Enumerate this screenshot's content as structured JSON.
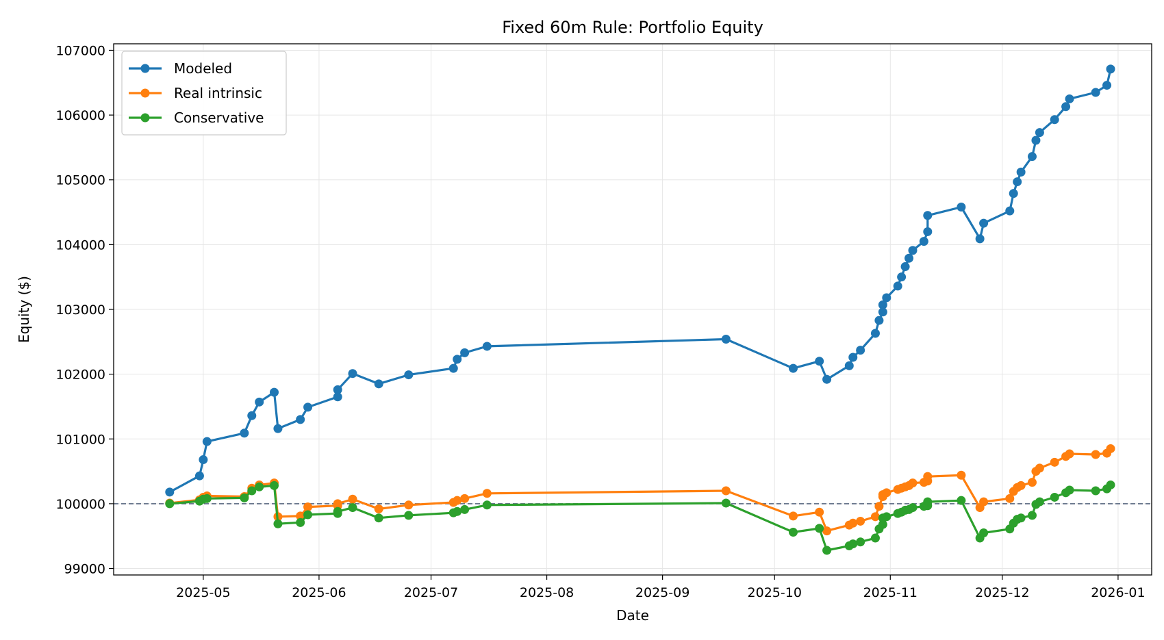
{
  "chart_data": {
    "type": "line",
    "title": "Fixed 60m Rule: Portfolio Equity",
    "xlabel": "Date",
    "ylabel": "Equity ($)",
    "xlim": [
      "2025-04-07",
      "2026-01-10"
    ],
    "ylim": [
      98900,
      107100
    ],
    "x_ticks": [
      "2025-05",
      "2025-06",
      "2025-07",
      "2025-08",
      "2025-09",
      "2025-10",
      "2025-11",
      "2025-12",
      "2026-01"
    ],
    "y_ticks": [
      99000,
      100000,
      101000,
      102000,
      103000,
      104000,
      105000,
      106000,
      107000
    ],
    "grid": true,
    "legend_position": "top-left",
    "reference_line": {
      "y": 100000,
      "style": "dashed",
      "color": "#56657e"
    },
    "series": [
      {
        "name": "Modeled",
        "color": "#1f77b4",
        "points": [
          [
            "2025-04-22",
            100180
          ],
          [
            "2025-04-30",
            100430
          ],
          [
            "2025-05-01",
            100680
          ],
          [
            "2025-05-02",
            100960
          ],
          [
            "2025-05-12",
            101090
          ],
          [
            "2025-05-14",
            101360
          ],
          [
            "2025-05-16",
            101570
          ],
          [
            "2025-05-20",
            101720
          ],
          [
            "2025-05-21",
            101160
          ],
          [
            "2025-05-27",
            101300
          ],
          [
            "2025-05-29",
            101490
          ],
          [
            "2025-06-06",
            101650
          ],
          [
            "2025-06-06",
            101760
          ],
          [
            "2025-06-10",
            102010
          ],
          [
            "2025-06-17",
            101850
          ],
          [
            "2025-06-25",
            101990
          ],
          [
            "2025-07-07",
            102090
          ],
          [
            "2025-07-08",
            102230
          ],
          [
            "2025-07-10",
            102330
          ],
          [
            "2025-07-16",
            102430
          ],
          [
            "2025-09-18",
            102540
          ],
          [
            "2025-10-06",
            102090
          ],
          [
            "2025-10-13",
            102200
          ],
          [
            "2025-10-15",
            101920
          ],
          [
            "2025-10-21",
            102130
          ],
          [
            "2025-10-22",
            102260
          ],
          [
            "2025-10-24",
            102370
          ],
          [
            "2025-10-28",
            102630
          ],
          [
            "2025-10-29",
            102830
          ],
          [
            "2025-10-30",
            102960
          ],
          [
            "2025-10-30",
            103070
          ],
          [
            "2025-10-31",
            103180
          ],
          [
            "2025-11-03",
            103360
          ],
          [
            "2025-11-04",
            103500
          ],
          [
            "2025-11-05",
            103660
          ],
          [
            "2025-11-06",
            103790
          ],
          [
            "2025-11-07",
            103910
          ],
          [
            "2025-11-10",
            104050
          ],
          [
            "2025-11-11",
            104200
          ],
          [
            "2025-11-11",
            104450
          ],
          [
            "2025-11-20",
            104580
          ],
          [
            "2025-11-25",
            104090
          ],
          [
            "2025-11-26",
            104330
          ],
          [
            "2025-12-03",
            104520
          ],
          [
            "2025-12-04",
            104790
          ],
          [
            "2025-12-05",
            104970
          ],
          [
            "2025-12-06",
            105120
          ],
          [
            "2025-12-09",
            105360
          ],
          [
            "2025-12-10",
            105610
          ],
          [
            "2025-12-11",
            105730
          ],
          [
            "2025-12-15",
            105930
          ],
          [
            "2025-12-18",
            106130
          ],
          [
            "2025-12-19",
            106250
          ],
          [
            "2025-12-26",
            106350
          ],
          [
            "2025-12-29",
            106460
          ],
          [
            "2025-12-30",
            106710
          ]
        ]
      },
      {
        "name": "Real intrinsic",
        "color": "#ff7f0e",
        "points": [
          [
            "2025-04-22",
            100010
          ],
          [
            "2025-04-30",
            100060
          ],
          [
            "2025-05-01",
            100100
          ],
          [
            "2025-05-02",
            100120
          ],
          [
            "2025-05-12",
            100110
          ],
          [
            "2025-05-14",
            100240
          ],
          [
            "2025-05-16",
            100290
          ],
          [
            "2025-05-20",
            100320
          ],
          [
            "2025-05-21",
            99800
          ],
          [
            "2025-05-27",
            99810
          ],
          [
            "2025-05-29",
            99950
          ],
          [
            "2025-06-06",
            99970
          ],
          [
            "2025-06-06",
            100000
          ],
          [
            "2025-06-10",
            100070
          ],
          [
            "2025-06-17",
            99920
          ],
          [
            "2025-06-25",
            99980
          ],
          [
            "2025-07-07",
            100020
          ],
          [
            "2025-07-08",
            100050
          ],
          [
            "2025-07-10",
            100080
          ],
          [
            "2025-07-16",
            100160
          ],
          [
            "2025-09-18",
            100200
          ],
          [
            "2025-10-06",
            99810
          ],
          [
            "2025-10-13",
            99870
          ],
          [
            "2025-10-15",
            99580
          ],
          [
            "2025-10-21",
            99670
          ],
          [
            "2025-10-22",
            99700
          ],
          [
            "2025-10-24",
            99730
          ],
          [
            "2025-10-28",
            99800
          ],
          [
            "2025-10-29",
            99960
          ],
          [
            "2025-10-30",
            100110
          ],
          [
            "2025-10-30",
            100140
          ],
          [
            "2025-10-31",
            100170
          ],
          [
            "2025-11-03",
            100220
          ],
          [
            "2025-11-04",
            100240
          ],
          [
            "2025-11-05",
            100260
          ],
          [
            "2025-11-06",
            100280
          ],
          [
            "2025-11-07",
            100320
          ],
          [
            "2025-11-10",
            100330
          ],
          [
            "2025-11-11",
            100350
          ],
          [
            "2025-11-11",
            100420
          ],
          [
            "2025-11-20",
            100440
          ],
          [
            "2025-11-25",
            99940
          ],
          [
            "2025-11-26",
            100030
          ],
          [
            "2025-12-03",
            100080
          ],
          [
            "2025-12-04",
            100190
          ],
          [
            "2025-12-05",
            100250
          ],
          [
            "2025-12-06",
            100280
          ],
          [
            "2025-12-09",
            100330
          ],
          [
            "2025-12-10",
            100500
          ],
          [
            "2025-12-11",
            100550
          ],
          [
            "2025-12-15",
            100640
          ],
          [
            "2025-12-18",
            100730
          ],
          [
            "2025-12-19",
            100770
          ],
          [
            "2025-12-26",
            100760
          ],
          [
            "2025-12-29",
            100780
          ],
          [
            "2025-12-30",
            100850
          ]
        ]
      },
      {
        "name": "Conservative",
        "color": "#2ca02c",
        "points": [
          [
            "2025-04-22",
            100000
          ],
          [
            "2025-04-30",
            100040
          ],
          [
            "2025-05-01",
            100070
          ],
          [
            "2025-05-02",
            100080
          ],
          [
            "2025-05-12",
            100090
          ],
          [
            "2025-05-14",
            100200
          ],
          [
            "2025-05-16",
            100260
          ],
          [
            "2025-05-20",
            100280
          ],
          [
            "2025-05-21",
            99690
          ],
          [
            "2025-05-27",
            99710
          ],
          [
            "2025-05-29",
            99830
          ],
          [
            "2025-06-06",
            99850
          ],
          [
            "2025-06-06",
            99880
          ],
          [
            "2025-06-10",
            99940
          ],
          [
            "2025-06-17",
            99780
          ],
          [
            "2025-06-25",
            99820
          ],
          [
            "2025-07-07",
            99860
          ],
          [
            "2025-07-08",
            99880
          ],
          [
            "2025-07-10",
            99910
          ],
          [
            "2025-07-16",
            99980
          ],
          [
            "2025-09-18",
            100010
          ],
          [
            "2025-10-06",
            99560
          ],
          [
            "2025-10-13",
            99620
          ],
          [
            "2025-10-15",
            99280
          ],
          [
            "2025-10-21",
            99350
          ],
          [
            "2025-10-22",
            99380
          ],
          [
            "2025-10-24",
            99410
          ],
          [
            "2025-10-28",
            99470
          ],
          [
            "2025-10-29",
            99610
          ],
          [
            "2025-10-30",
            99680
          ],
          [
            "2025-10-30",
            99780
          ],
          [
            "2025-10-31",
            99800
          ],
          [
            "2025-11-03",
            99850
          ],
          [
            "2025-11-04",
            99870
          ],
          [
            "2025-11-05",
            99900
          ],
          [
            "2025-11-06",
            99910
          ],
          [
            "2025-11-07",
            99940
          ],
          [
            "2025-11-10",
            99960
          ],
          [
            "2025-11-11",
            99970
          ],
          [
            "2025-11-11",
            100030
          ],
          [
            "2025-11-20",
            100050
          ],
          [
            "2025-11-25",
            99470
          ],
          [
            "2025-11-26",
            99550
          ],
          [
            "2025-12-03",
            99610
          ],
          [
            "2025-12-04",
            99700
          ],
          [
            "2025-12-05",
            99760
          ],
          [
            "2025-12-06",
            99780
          ],
          [
            "2025-12-09",
            99820
          ],
          [
            "2025-12-10",
            99990
          ],
          [
            "2025-12-11",
            100030
          ],
          [
            "2025-12-15",
            100100
          ],
          [
            "2025-12-18",
            100170
          ],
          [
            "2025-12-19",
            100210
          ],
          [
            "2025-12-26",
            100200
          ],
          [
            "2025-12-29",
            100230
          ],
          [
            "2025-12-30",
            100290
          ]
        ]
      }
    ]
  }
}
